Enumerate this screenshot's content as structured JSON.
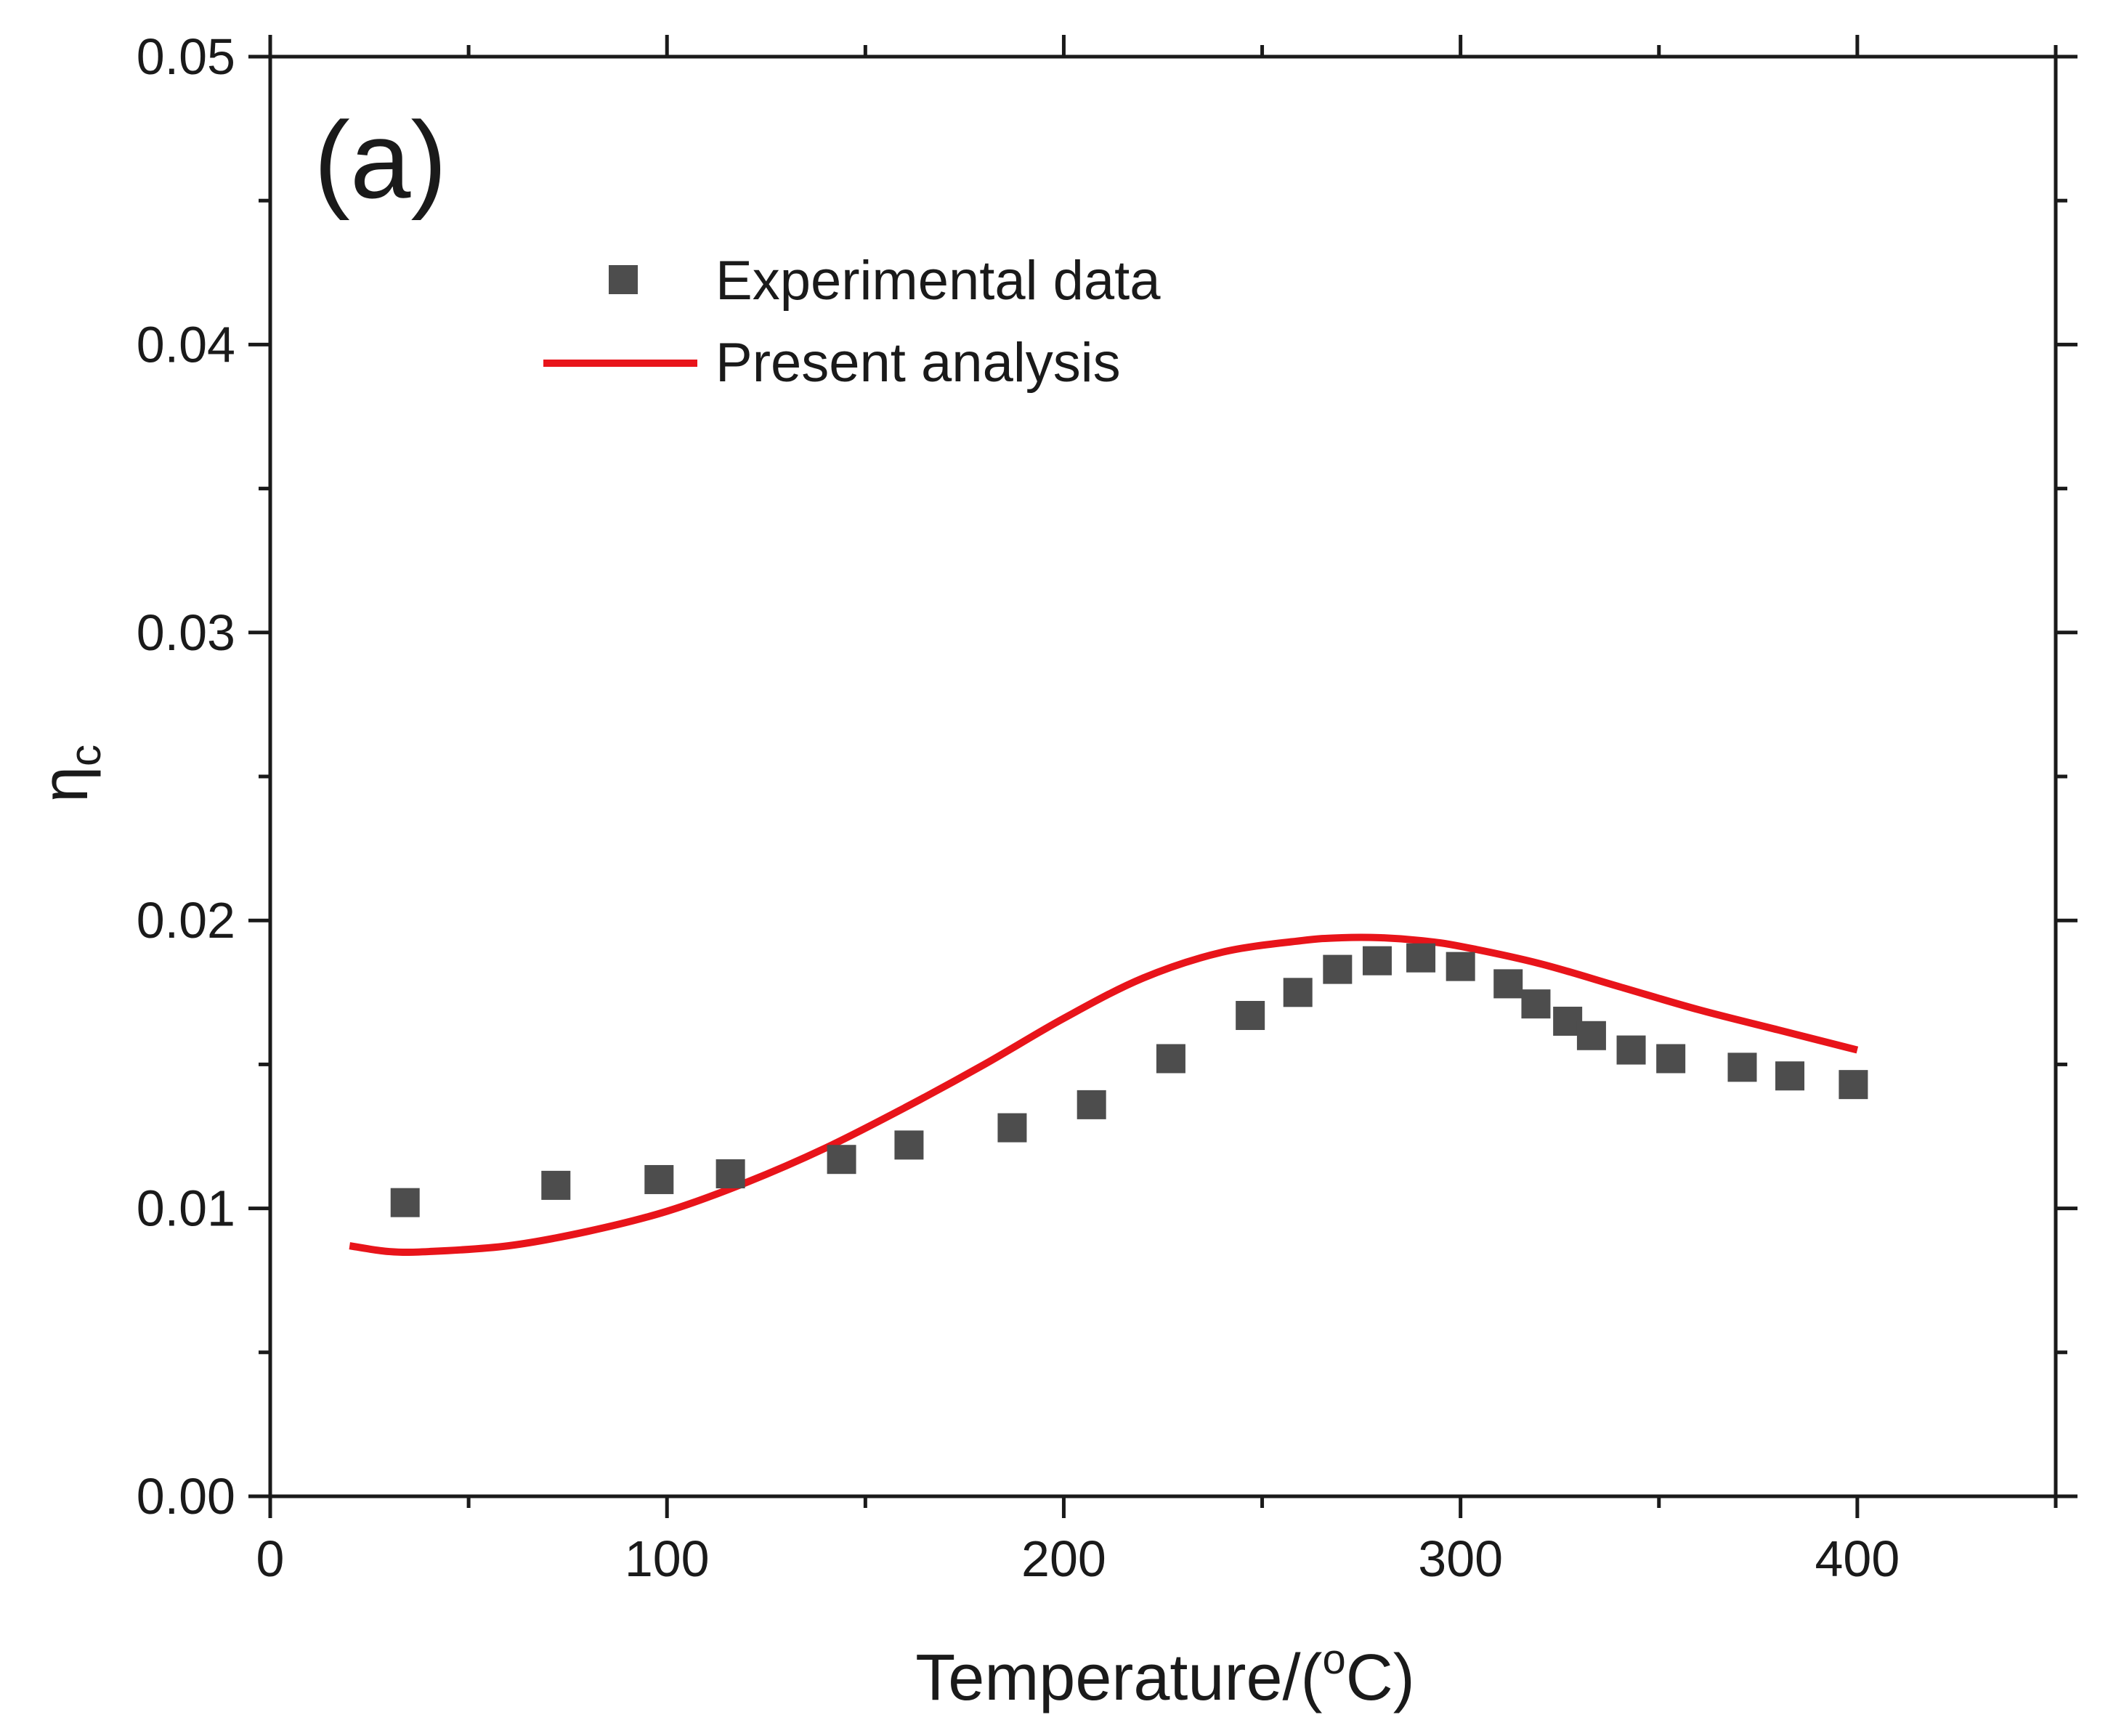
{
  "chart_data": {
    "type": "scatter",
    "panel_label": "(a)",
    "xlabel": {
      "main": "Temperature/(",
      "sup": "o",
      "tail": "C)"
    },
    "ylabel": {
      "main": "η",
      "sub": "c"
    },
    "xlim": [
      0,
      450
    ],
    "ylim": [
      0,
      0.05
    ],
    "x_ticks": [
      0,
      100,
      200,
      300,
      400
    ],
    "x_tick_labels": [
      "0",
      "100",
      "200",
      "300",
      "400"
    ],
    "y_ticks": [
      0,
      0.01,
      0.02,
      0.03,
      0.04,
      0.05
    ],
    "y_tick_labels": [
      "0.00",
      "0.01",
      "0.02",
      "0.03",
      "0.04",
      "0.05"
    ],
    "legend_position": "top-left",
    "series": [
      {
        "name": "Experimental data",
        "kind": "scatter",
        "marker": "square",
        "color": "#4d4d4d",
        "x": [
          34,
          72,
          98,
          116,
          144,
          161,
          187,
          207,
          227,
          247,
          259,
          269,
          279,
          290,
          300,
          312,
          319,
          327,
          333,
          343,
          353,
          371,
          383,
          399
        ],
        "y": [
          0.0102,
          0.0108,
          0.011,
          0.0112,
          0.0117,
          0.0122,
          0.0128,
          0.0136,
          0.0152,
          0.0167,
          0.0175,
          0.0183,
          0.0186,
          0.0187,
          0.0184,
          0.0178,
          0.0171,
          0.0165,
          0.016,
          0.0155,
          0.0152,
          0.0149,
          0.0146,
          0.0143
        ]
      },
      {
        "name": "Present analysis",
        "kind": "line",
        "color": "#e8141a",
        "x": [
          20,
          30,
          40,
          60,
          80,
          100,
          120,
          140,
          160,
          180,
          200,
          220,
          240,
          260,
          270,
          280,
          290,
          300,
          320,
          340,
          360,
          380,
          400
        ],
        "y": [
          0.0087,
          0.0085,
          0.0085,
          0.0087,
          0.0092,
          0.0099,
          0.0109,
          0.0121,
          0.0135,
          0.015,
          0.0166,
          0.018,
          0.0189,
          0.0193,
          0.0194,
          0.0194,
          0.0193,
          0.0191,
          0.0185,
          0.0177,
          0.0169,
          0.0162,
          0.0155
        ]
      }
    ]
  }
}
